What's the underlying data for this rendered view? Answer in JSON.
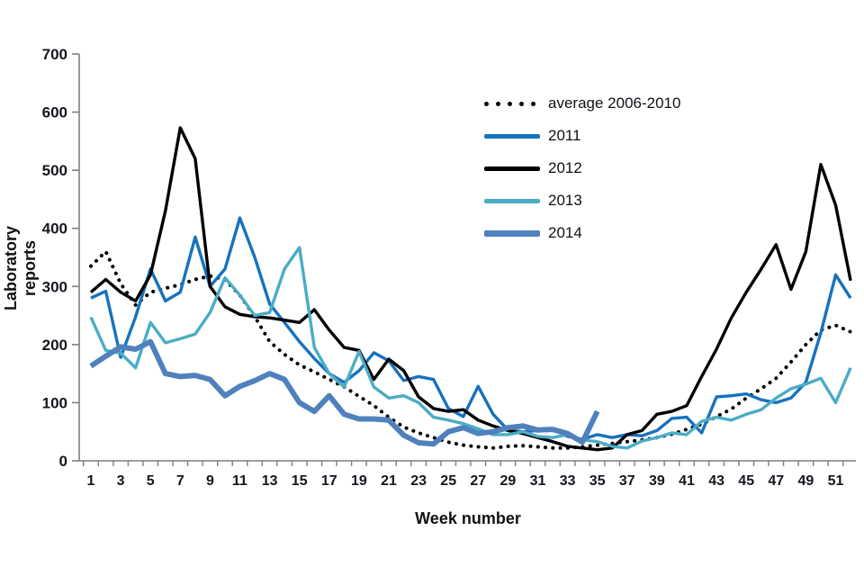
{
  "style": {
    "background": "#ffffff",
    "axis_color": "#7f7f7f",
    "tick_label_color": "#15151f"
  },
  "chart_data": {
    "type": "line",
    "title": "",
    "xlabel": "Week number",
    "ylabel": "Laboratory reports",
    "weeks": 52,
    "x_tick_labels": [
      "1",
      "3",
      "5",
      "7",
      "9",
      "11",
      "13",
      "15",
      "17",
      "19",
      "21",
      "23",
      "25",
      "27",
      "29",
      "31",
      "33",
      "35",
      "37",
      "39",
      "41",
      "43",
      "45",
      "47",
      "49",
      "51"
    ],
    "ylim": [
      0,
      700
    ],
    "y_ticks": [
      0,
      100,
      200,
      300,
      400,
      500,
      600,
      700
    ],
    "grid": false,
    "legend_position": "inside upper right",
    "series": [
      {
        "name": "average 2006-2010",
        "color": "#000000",
        "style": "dotted",
        "width": 4,
        "values": [
          335,
          360,
          305,
          268,
          290,
          297,
          303,
          312,
          318,
          312,
          285,
          248,
          205,
          183,
          165,
          153,
          140,
          127,
          111,
          95,
          75,
          58,
          48,
          40,
          32,
          27,
          24,
          22,
          25,
          26,
          24,
          22,
          22,
          24,
          27,
          30,
          33,
          36,
          40,
          46,
          54,
          63,
          76,
          89,
          108,
          124,
          142,
          170,
          200,
          225,
          233,
          222
        ]
      },
      {
        "name": "2011",
        "color": "#1772BD",
        "style": "solid",
        "width": 3.4,
        "values": [
          280,
          292,
          178,
          248,
          330,
          275,
          290,
          385,
          300,
          330,
          418,
          350,
          270,
          238,
          205,
          176,
          150,
          135,
          155,
          186,
          172,
          138,
          145,
          140,
          90,
          76,
          128,
          80,
          53,
          50,
          52,
          55,
          42,
          37,
          45,
          40,
          45,
          43,
          52,
          73,
          75,
          48,
          110,
          112,
          115,
          105,
          100,
          108,
          135,
          220,
          320,
          280
        ]
      },
      {
        "name": "2012",
        "color": "#000000",
        "style": "solid",
        "width": 3.4,
        "values": [
          290,
          312,
          290,
          275,
          320,
          430,
          573,
          520,
          300,
          265,
          252,
          248,
          246,
          242,
          238,
          260,
          225,
          195,
          190,
          140,
          175,
          155,
          110,
          90,
          85,
          88,
          70,
          60,
          52,
          47,
          40,
          33,
          25,
          22,
          19,
          22,
          45,
          52,
          80,
          85,
          95,
          145,
          192,
          246,
          290,
          330,
          372,
          295,
          360,
          510,
          440,
          310
        ]
      },
      {
        "name": "2013",
        "color": "#4BACC6",
        "style": "solid",
        "width": 3.4,
        "values": [
          247,
          190,
          185,
          160,
          238,
          203,
          210,
          218,
          255,
          315,
          285,
          250,
          255,
          330,
          367,
          195,
          150,
          127,
          188,
          127,
          108,
          112,
          100,
          75,
          70,
          64,
          55,
          45,
          45,
          50,
          42,
          40,
          45,
          36,
          33,
          25,
          22,
          34,
          40,
          48,
          45,
          68,
          75,
          70,
          80,
          88,
          108,
          124,
          132,
          142,
          100,
          160
        ]
      },
      {
        "name": "2014",
        "color": "#4F81BD",
        "style": "solid",
        "width": 6,
        "values": [
          163,
          180,
          196,
          192,
          205,
          150,
          145,
          147,
          140,
          112,
          128,
          138,
          150,
          140,
          100,
          85,
          112,
          80,
          72,
          72,
          70,
          44,
          31,
          29,
          50,
          57,
          47,
          50,
          57,
          60,
          53,
          54,
          47,
          32,
          85
        ]
      }
    ]
  }
}
